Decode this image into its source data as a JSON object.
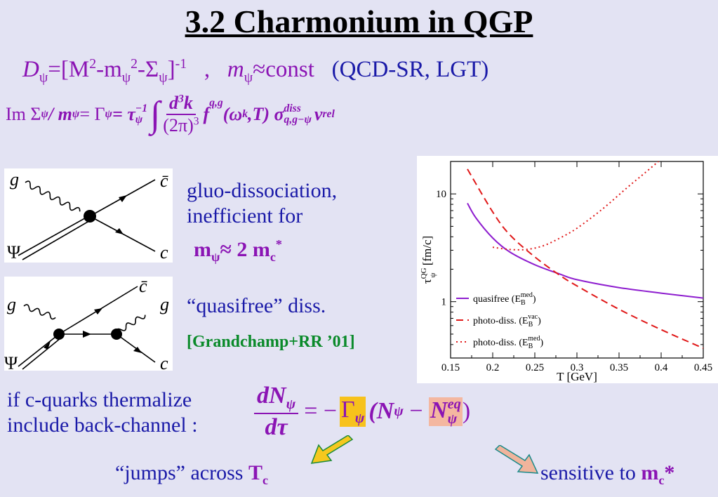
{
  "title": "3.2 Charmonium in QGP",
  "eq1": {
    "lhs": "D",
    "lhs_sub": "ψ",
    "mid": "=[M",
    "sup2": "2",
    "minus_m": "-m",
    "m_sub": "ψ",
    "sup2b": "2",
    "minus_sigma": "-Σ",
    "sigma_sub": "ψ",
    "close": "]",
    "inv": "-1",
    "sep": ",",
    "m2": "m",
    "m2_sub": "ψ",
    "approx": "≈const",
    "refs": "(QCD-SR, LGT)"
  },
  "eq2": {
    "text_lhs": "Im Σ",
    "psi": "ψ",
    "slash_m": " / m",
    "eq_gamma": " = Γ",
    "eq_tau": " = τ",
    "tau_sup": "−1",
    "integral": "∫",
    "num": "d",
    "num_sup": "3",
    "num_k": "k",
    "den": "(2π)",
    "den_sup": "3",
    "f": "f",
    "f_sup": "q,g",
    "args": "(ω",
    "args_sub": "k",
    "args_rest": ",T) σ",
    "sigma_sup": "diss",
    "sigma_sub": "q,g−ψ",
    "v": "v",
    "v_sub": "rel"
  },
  "diag1": {
    "g": "g",
    "cbar": "c̄",
    "psi": "Ψ",
    "c": "c"
  },
  "diag2": {
    "g_left": "g",
    "g_right": "g",
    "cbar": "c̄",
    "psi": "Ψ",
    "c": "c"
  },
  "text1": {
    "line1": "gluo-dissociation,",
    "line2": "inefficient for",
    "m": "m",
    "m_sub": "ψ",
    "approx": "≈ 2 m",
    "mc_sub": "c",
    "star": "*"
  },
  "text2": {
    "line": "“quasifree” diss.",
    "ref": "[Grandchamp+RR ’01]"
  },
  "back": {
    "line1": "if c-quarks thermalize",
    "line2": "include back-channel :",
    "num": "dN",
    "num_sub": "ψ",
    "den": "dτ",
    "eq": "= −",
    "gamma": "Γ",
    "gamma_sub": "ψ",
    "paren_open": "(N",
    "n_sub": "ψ",
    "minus": " − ",
    "neq": "N",
    "neq_sup": "eq",
    "neq_sub": "ψ",
    "paren_close": ")"
  },
  "jumps": {
    "text": "“jumps” across ",
    "T": "T",
    "T_sub": "c"
  },
  "sensitive": {
    "text": "sensitive to ",
    "m": "m",
    "m_sub": "c",
    "star": "*"
  },
  "colors": {
    "purple": "#8b14b4",
    "blue": "#1a1aa8",
    "green": "#0a8a2a",
    "quasifree": "#8e1ecf",
    "photo": "#e01818",
    "arrow_yellow": "#f5c81e",
    "arrow_pink": "#f0b49c"
  },
  "chart_data": {
    "type": "line",
    "xlabel": "T [GeV]",
    "ylabel": "τψQG [fm/c]",
    "ylabel_main": "τ",
    "ylabel_sub": "ψ",
    "ylabel_sup": "QG",
    "ylabel_unit": " [fm/c]",
    "xlim": [
      0.15,
      0.45
    ],
    "ylim": [
      0.3,
      20
    ],
    "yscale": "log",
    "xticks": [
      0.15,
      0.2,
      0.25,
      0.3,
      0.35,
      0.4,
      0.45
    ],
    "xtick_labels": [
      "0.15",
      "0.2",
      "0.25",
      "0.3",
      "0.35",
      "0.4",
      "0.45"
    ],
    "yticks": [
      1,
      10
    ],
    "ytick_labels": [
      "1",
      "10"
    ],
    "legend_position": "bottom-left",
    "series": [
      {
        "name": "quasifree (E",
        "name_sub": "B",
        "name_sup": "med",
        "name_close": ")",
        "style": "solid",
        "x": [
          0.17,
          0.18,
          0.2,
          0.22,
          0.25,
          0.28,
          0.3,
          0.35,
          0.4,
          0.45
        ],
        "y": [
          8.2,
          6.0,
          3.9,
          2.9,
          2.2,
          1.8,
          1.6,
          1.35,
          1.2,
          1.08
        ]
      },
      {
        "name": "photo-diss. (E",
        "name_sub": "B",
        "name_sup": "vac",
        "name_close": ")",
        "style": "dashed",
        "x": [
          0.17,
          0.2,
          0.22,
          0.25,
          0.28,
          0.3,
          0.35,
          0.4,
          0.45
        ],
        "y": [
          17,
          6.8,
          4.2,
          2.6,
          1.75,
          1.4,
          0.85,
          0.55,
          0.37
        ]
      },
      {
        "name": "photo-diss. (E",
        "name_sub": "B",
        "name_sup": "med",
        "name_close": ")",
        "style": "dotted",
        "x": [
          0.2,
          0.22,
          0.24,
          0.26,
          0.28,
          0.3,
          0.33,
          0.36,
          0.38,
          0.4
        ],
        "y": [
          3.2,
          3.05,
          3.05,
          3.3,
          3.9,
          4.8,
          7.2,
          11.5,
          15.5,
          21
        ]
      }
    ]
  }
}
